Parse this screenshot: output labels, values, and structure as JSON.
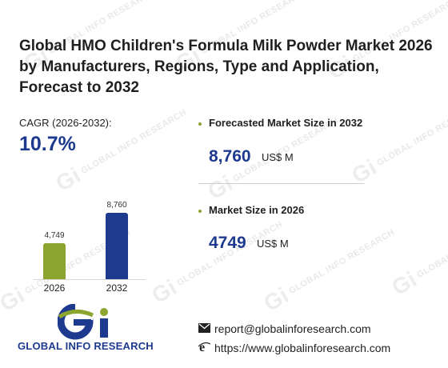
{
  "title": "Global HMO Children's Formula Milk Powder Market 2026 by Manufacturers, Regions, Type and Application, Forecast to 2032",
  "cagr": {
    "label": "CAGR (2026-2032):",
    "value": "10.7%"
  },
  "chart_data": {
    "type": "bar",
    "categories": [
      "2026",
      "2032"
    ],
    "values": [
      4749,
      8760
    ],
    "data_labels": [
      "4,749",
      "8,760"
    ],
    "colors": [
      "#8ca52e",
      "#1d3a8f"
    ]
  },
  "stats": [
    {
      "label": "Forecasted Market Size in 2032",
      "value": "8,760",
      "unit": "US$ M"
    },
    {
      "label": "Market Size in 2026",
      "value": "4749",
      "unit": "US$ M"
    }
  ],
  "logo": {
    "text": "GLOBAL INFO RESEARCH"
  },
  "contact": {
    "email": "report@globalinforesearch.com",
    "website": "https://www.globalinforesearch.com"
  },
  "watermark": "GLOBAL INFO RESEARCH",
  "colors": {
    "accent_blue": "#1d3a8f",
    "accent_green": "#8ca52e"
  }
}
